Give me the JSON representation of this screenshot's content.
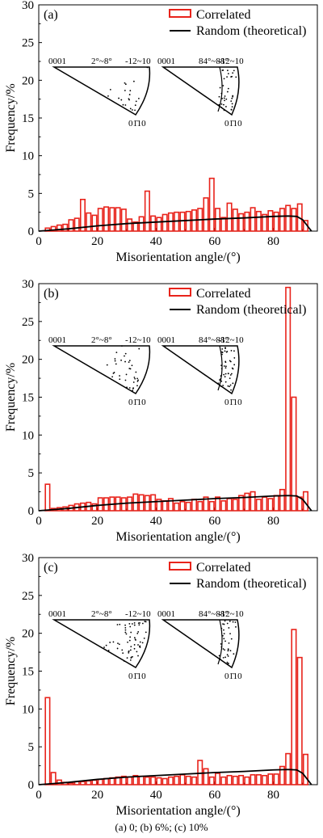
{
  "caption": "(a) 0; (b) 6%; (c) 10%",
  "chart_data": [
    {
      "type": "bar",
      "panel_label": "(a)",
      "xlabel": "Misorientation angle/(°)",
      "ylabel": "Frequency/%",
      "xlim": [
        0,
        95
      ],
      "ylim": [
        0,
        30
      ],
      "xticks": [
        0,
        20,
        40,
        60,
        80
      ],
      "yticks": [
        0,
        5,
        10,
        15,
        20,
        25,
        30
      ],
      "legend": {
        "position": "top-right",
        "entries": [
          "Correlated",
          "Random (theoretical)"
        ]
      },
      "bin_width": 2,
      "series": [
        {
          "name": "Correlated",
          "kind": "bar",
          "color": "#e8231b",
          "x": [
            3,
            5,
            7,
            9,
            11,
            13,
            15,
            17,
            19,
            21,
            23,
            25,
            27,
            29,
            31,
            33,
            35,
            37,
            39,
            41,
            43,
            45,
            47,
            49,
            51,
            53,
            55,
            57,
            59,
            61,
            63,
            65,
            67,
            69,
            71,
            73,
            75,
            77,
            79,
            81,
            83,
            85,
            87,
            89,
            91
          ],
          "values": [
            0.4,
            0.6,
            0.8,
            0.9,
            1.5,
            1.7,
            4.2,
            2.4,
            2.1,
            3.0,
            3.2,
            3.1,
            3.1,
            2.9,
            1.6,
            1.2,
            1.9,
            5.3,
            2.0,
            1.8,
            2.2,
            2.4,
            2.5,
            2.5,
            2.6,
            2.8,
            3.0,
            4.4,
            7.0,
            3.0,
            1.8,
            3.7,
            2.9,
            2.3,
            2.5,
            3.1,
            2.6,
            2.2,
            2.7,
            2.5,
            3.0,
            3.4,
            3.0,
            3.6,
            1.4
          ]
        },
        {
          "name": "Random (theoretical)",
          "kind": "line",
          "color": "#000000",
          "x": [
            0,
            5,
            10,
            20,
            30,
            40,
            50,
            60,
            70,
            80,
            85,
            88,
            90,
            93
          ],
          "values": [
            0,
            0.15,
            0.3,
            0.7,
            1.0,
            1.2,
            1.4,
            1.6,
            1.75,
            1.95,
            2.0,
            1.95,
            1.5,
            0
          ]
        }
      ],
      "insets": [
        {
          "left_label": "0001",
          "top_label": "2°~8°",
          "right_label": "-12~10",
          "bottom_label": "01̄10"
        },
        {
          "left_label": "0001",
          "top_label": "84°~88°",
          "right_label": "-12~10",
          "bottom_label": "01̄10"
        }
      ]
    },
    {
      "type": "bar",
      "panel_label": "(b)",
      "xlabel": "Misorientation angle/(°)",
      "ylabel": "Frequency/%",
      "xlim": [
        0,
        95
      ],
      "ylim": [
        0,
        30
      ],
      "xticks": [
        0,
        20,
        40,
        60,
        80
      ],
      "yticks": [
        0,
        5,
        10,
        15,
        20,
        25,
        30
      ],
      "legend": {
        "position": "top-right",
        "entries": [
          "Correlated",
          "Random (theoretical)"
        ]
      },
      "bin_width": 2,
      "series": [
        {
          "name": "Correlated",
          "kind": "bar",
          "color": "#e8231b",
          "x": [
            3,
            5,
            7,
            9,
            11,
            13,
            15,
            17,
            19,
            21,
            23,
            25,
            27,
            29,
            31,
            33,
            35,
            37,
            39,
            41,
            43,
            45,
            47,
            49,
            51,
            53,
            55,
            57,
            59,
            61,
            63,
            65,
            67,
            69,
            71,
            73,
            75,
            77,
            79,
            81,
            83,
            85,
            87,
            89,
            91
          ],
          "values": [
            3.5,
            0.3,
            0.4,
            0.5,
            0.7,
            0.9,
            1.0,
            1.1,
            0.9,
            1.7,
            1.7,
            1.8,
            1.8,
            1.7,
            1.8,
            2.2,
            2.1,
            2.0,
            2.1,
            1.5,
            1.3,
            1.6,
            1.0,
            1.2,
            1.1,
            1.5,
            1.2,
            1.8,
            1.2,
            1.8,
            1.3,
            1.6,
            1.5,
            2.0,
            2.3,
            2.5,
            1.5,
            1.8,
            1.6,
            2.0,
            2.8,
            29.5,
            15.0,
            1.8,
            2.5
          ]
        },
        {
          "name": "Random (theoretical)",
          "kind": "line",
          "color": "#000000",
          "x": [
            0,
            5,
            10,
            20,
            30,
            40,
            50,
            60,
            70,
            80,
            85,
            88,
            90,
            93
          ],
          "values": [
            0,
            0.15,
            0.3,
            0.7,
            1.0,
            1.2,
            1.4,
            1.6,
            1.75,
            1.95,
            2.0,
            1.95,
            1.5,
            0
          ]
        }
      ],
      "insets": [
        {
          "left_label": "0001",
          "top_label": "2°~8°",
          "right_label": "-12~10",
          "bottom_label": "01̄10"
        },
        {
          "left_label": "0001",
          "top_label": "84°~88°",
          "right_label": "-12~10",
          "bottom_label": "01̄10"
        }
      ]
    },
    {
      "type": "bar",
      "panel_label": "(c)",
      "xlabel": "Misorientation angle/(°)",
      "ylabel": "Frequency/%",
      "xlim": [
        0,
        95
      ],
      "ylim": [
        0,
        30
      ],
      "xticks": [
        0,
        20,
        40,
        60,
        80
      ],
      "yticks": [
        0,
        5,
        10,
        15,
        20,
        25,
        30
      ],
      "legend": {
        "position": "top-right",
        "entries": [
          "Correlated",
          "Random (theoretical)"
        ]
      },
      "bin_width": 2,
      "series": [
        {
          "name": "Correlated",
          "kind": "bar",
          "color": "#e8231b",
          "x": [
            3,
            5,
            7,
            9,
            11,
            13,
            15,
            17,
            19,
            21,
            23,
            25,
            27,
            29,
            31,
            33,
            35,
            37,
            39,
            41,
            43,
            45,
            47,
            49,
            51,
            53,
            55,
            57,
            59,
            61,
            63,
            65,
            67,
            69,
            71,
            73,
            75,
            77,
            79,
            81,
            83,
            85,
            87,
            89,
            91
          ],
          "values": [
            11.5,
            1.6,
            0.6,
            0.3,
            0.2,
            0.4,
            0.4,
            0.5,
            0.6,
            0.7,
            0.8,
            0.9,
            1.0,
            1.1,
            1.0,
            1.2,
            1.1,
            1.0,
            1.0,
            0.9,
            0.8,
            1.0,
            1.1,
            1.3,
            1.1,
            1.0,
            3.2,
            2.1,
            1.0,
            1.5,
            1.0,
            1.2,
            1.1,
            1.2,
            1.0,
            1.3,
            1.3,
            1.2,
            1.4,
            1.4,
            2.4,
            4.1,
            20.5,
            16.8,
            4.0
          ]
        },
        {
          "name": "Random (theoretical)",
          "kind": "line",
          "color": "#000000",
          "x": [
            0,
            5,
            10,
            20,
            30,
            40,
            50,
            60,
            70,
            80,
            85,
            88,
            90,
            93
          ],
          "values": [
            0,
            0.15,
            0.3,
            0.7,
            1.0,
            1.2,
            1.4,
            1.6,
            1.75,
            1.95,
            2.0,
            1.95,
            1.5,
            0
          ]
        }
      ],
      "insets": [
        {
          "left_label": "0001",
          "top_label": "2°~8°",
          "right_label": "-12~10",
          "bottom_label": "01̄10"
        },
        {
          "left_label": "0001",
          "top_label": "84°~88°",
          "right_label": "-12~10",
          "bottom_label": "01̄10"
        }
      ]
    }
  ]
}
